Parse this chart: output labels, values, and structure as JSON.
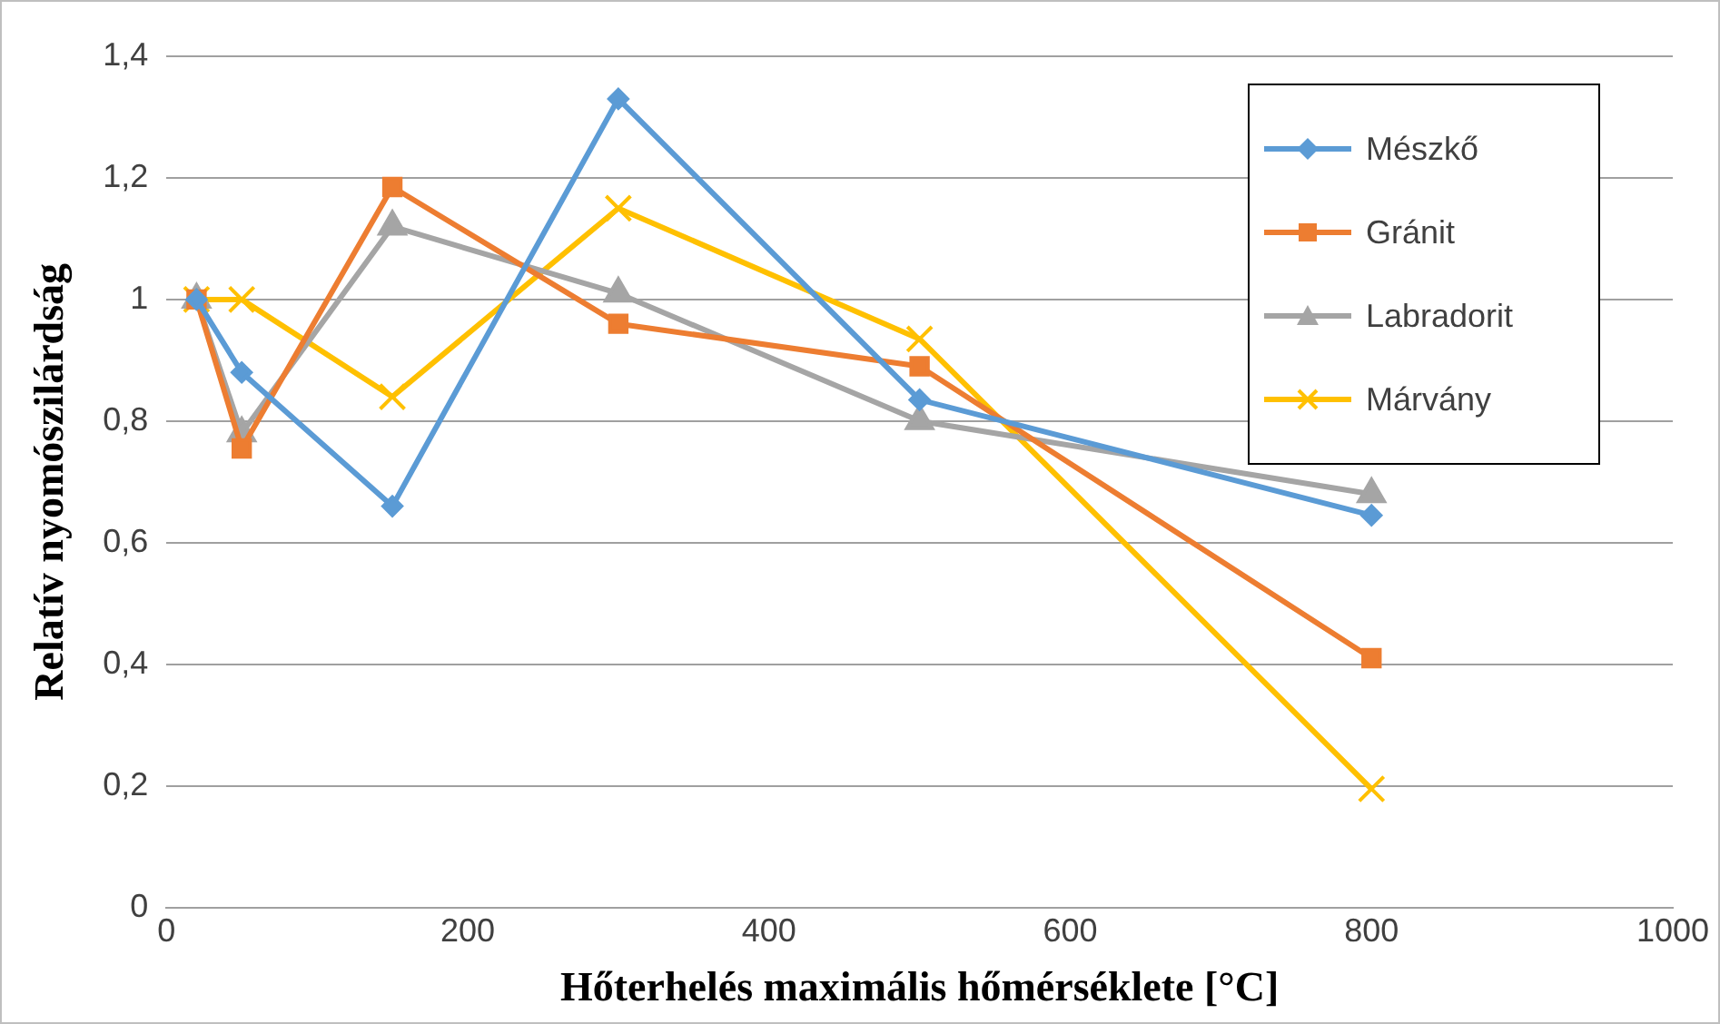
{
  "chart_data": {
    "type": "line",
    "xlabel": "Hőterhelés maximális hőmérséklete [°C]",
    "ylabel": "Relatív nyomószilárdság",
    "xlim": [
      0,
      1000
    ],
    "xticks": [
      0,
      200,
      400,
      600,
      800,
      1000
    ],
    "ylim": [
      0,
      1.4
    ],
    "yticks": [
      0,
      {
        "value": 0.2,
        "label": "0,2"
      },
      {
        "value": 0.4,
        "label": "0,4"
      },
      {
        "value": 0.6,
        "label": "0,6"
      },
      {
        "value": 0.8,
        "label": "0,8"
      },
      1,
      {
        "value": 1.2,
        "label": "1,2"
      },
      {
        "value": 1.4,
        "label": "1,4"
      }
    ],
    "grid": "y",
    "legend": "top right",
    "line_style": "solid",
    "x": [
      20,
      50,
      150,
      300,
      500,
      800
    ],
    "series": [
      {
        "name": "Mészkő",
        "color": "#5b9bd5",
        "marker": "diamond",
        "values": [
          1.0,
          0.88,
          0.66,
          1.33,
          0.835,
          0.645
        ]
      },
      {
        "name": "Gránit",
        "color": "#ed7d31",
        "marker": "square",
        "values": [
          1.0,
          0.755,
          1.185,
          0.96,
          0.89,
          0.41
        ]
      },
      {
        "name": "Labradorit",
        "color": "#a5a5a5",
        "marker": "triangle",
        "values": [
          1.0,
          0.78,
          1.12,
          1.01,
          0.8,
          0.68
        ]
      },
      {
        "name": "Márvány",
        "color": "#ffc000",
        "marker": "cross",
        "values": [
          1.0,
          1.0,
          0.84,
          1.15,
          0.935,
          0.195
        ]
      }
    ]
  }
}
